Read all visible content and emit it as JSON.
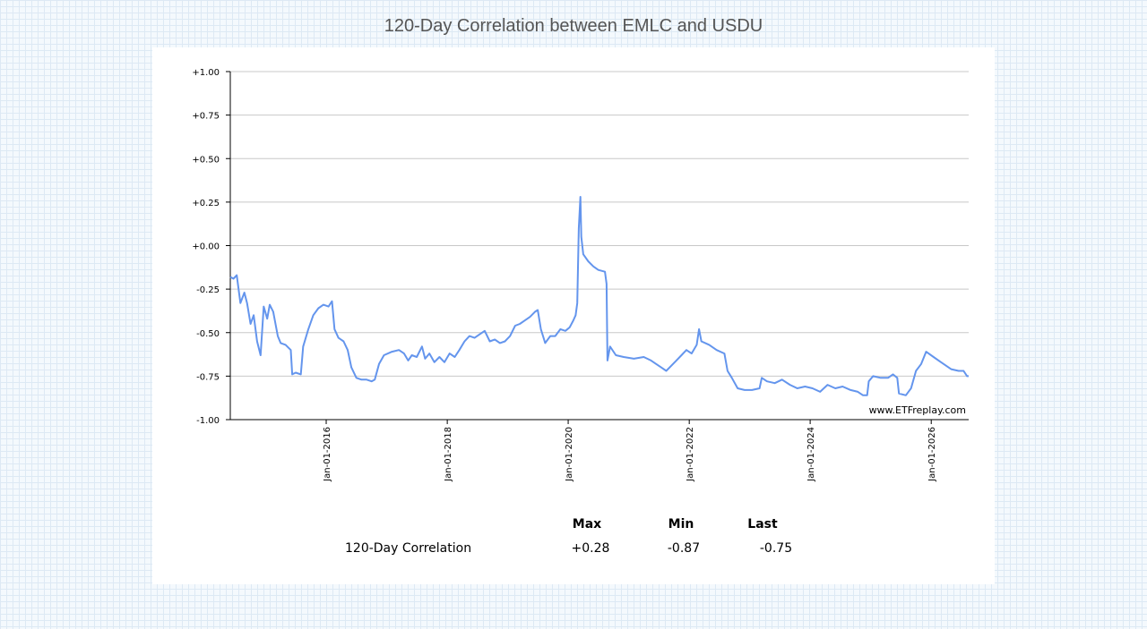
{
  "title": "120-Day Correlation between EMLC and USDU",
  "chart_data": {
    "type": "line",
    "title": "120-Day Correlation between EMLC and USDU",
    "ylim": [
      -1.0,
      1.0
    ],
    "yticks": [
      "+1.00",
      "+0.75",
      "+0.50",
      "+0.25",
      "+0.00",
      "-0.25",
      "-0.50",
      "-0.75",
      "-1.00"
    ],
    "ytick_values": [
      1.0,
      0.75,
      0.5,
      0.25,
      0.0,
      -0.25,
      -0.5,
      -0.75,
      -1.0
    ],
    "xlim": [
      "2014-06-01",
      "2026-08-15"
    ],
    "xticks": [
      "Jan-01-2016",
      "Jan-01-2018",
      "Jan-01-2020",
      "Jan-01-2022",
      "Jan-01-2024",
      "Jan-01-2026"
    ],
    "xtick_dates": [
      "2016-01-01",
      "2018-01-01",
      "2020-01-01",
      "2022-01-01",
      "2024-01-01",
      "2026-01-01"
    ],
    "grid": true,
    "watermark": "www.ETFreplay.com",
    "line_color": "#6495ed",
    "series": [
      {
        "points": [
          [
            "2014-06-01",
            -0.18
          ],
          [
            "2014-06-20",
            -0.19
          ],
          [
            "2014-07-10",
            -0.17
          ],
          [
            "2014-08-01",
            -0.33
          ],
          [
            "2014-08-25",
            -0.27
          ],
          [
            "2014-09-10",
            -0.33
          ],
          [
            "2014-10-01",
            -0.45
          ],
          [
            "2014-10-20",
            -0.4
          ],
          [
            "2014-11-10",
            -0.55
          ],
          [
            "2014-12-01",
            -0.63
          ],
          [
            "2014-12-20",
            -0.35
          ],
          [
            "2015-01-10",
            -0.42
          ],
          [
            "2015-01-25",
            -0.34
          ],
          [
            "2015-02-15",
            -0.38
          ],
          [
            "2015-03-15",
            -0.52
          ],
          [
            "2015-04-01",
            -0.56
          ],
          [
            "2015-05-01",
            -0.57
          ],
          [
            "2015-06-01",
            -0.6
          ],
          [
            "2015-06-10",
            -0.74
          ],
          [
            "2015-07-01",
            -0.73
          ],
          [
            "2015-08-01",
            -0.74
          ],
          [
            "2015-08-15",
            -0.58
          ],
          [
            "2015-09-15",
            -0.48
          ],
          [
            "2015-10-15",
            -0.4
          ],
          [
            "2015-11-15",
            -0.36
          ],
          [
            "2015-12-15",
            -0.34
          ],
          [
            "2016-01-15",
            -0.35
          ],
          [
            "2016-02-05",
            -0.32
          ],
          [
            "2016-02-20",
            -0.48
          ],
          [
            "2016-03-15",
            -0.53
          ],
          [
            "2016-04-15",
            -0.55
          ],
          [
            "2016-05-10",
            -0.6
          ],
          [
            "2016-06-01",
            -0.7
          ],
          [
            "2016-07-01",
            -0.76
          ],
          [
            "2016-08-01",
            -0.77
          ],
          [
            "2016-09-01",
            -0.77
          ],
          [
            "2016-10-01",
            -0.78
          ],
          [
            "2016-10-20",
            -0.77
          ],
          [
            "2016-11-15",
            -0.68
          ],
          [
            "2016-12-15",
            -0.63
          ],
          [
            "2017-02-01",
            -0.61
          ],
          [
            "2017-03-15",
            -0.6
          ],
          [
            "2017-04-15",
            -0.62
          ],
          [
            "2017-05-10",
            -0.66
          ],
          [
            "2017-06-01",
            -0.63
          ],
          [
            "2017-07-01",
            -0.64
          ],
          [
            "2017-08-01",
            -0.58
          ],
          [
            "2017-08-20",
            -0.65
          ],
          [
            "2017-09-15",
            -0.62
          ],
          [
            "2017-10-15",
            -0.67
          ],
          [
            "2017-11-15",
            -0.64
          ],
          [
            "2017-12-15",
            -0.67
          ],
          [
            "2018-01-15",
            -0.62
          ],
          [
            "2018-02-15",
            -0.64
          ],
          [
            "2018-03-15",
            -0.6
          ],
          [
            "2018-04-15",
            -0.55
          ],
          [
            "2018-05-15",
            -0.52
          ],
          [
            "2018-06-15",
            -0.53
          ],
          [
            "2018-07-15",
            -0.51
          ],
          [
            "2018-08-15",
            -0.49
          ],
          [
            "2018-09-15",
            -0.55
          ],
          [
            "2018-10-15",
            -0.54
          ],
          [
            "2018-11-15",
            -0.56
          ],
          [
            "2018-12-15",
            -0.55
          ],
          [
            "2019-01-15",
            -0.52
          ],
          [
            "2019-02-15",
            -0.46
          ],
          [
            "2019-03-15",
            -0.45
          ],
          [
            "2019-04-15",
            -0.43
          ],
          [
            "2019-05-15",
            -0.41
          ],
          [
            "2019-06-15",
            -0.38
          ],
          [
            "2019-07-01",
            -0.37
          ],
          [
            "2019-07-20",
            -0.48
          ],
          [
            "2019-08-15",
            -0.56
          ],
          [
            "2019-09-15",
            -0.52
          ],
          [
            "2019-10-15",
            -0.52
          ],
          [
            "2019-11-15",
            -0.48
          ],
          [
            "2019-12-15",
            -0.49
          ],
          [
            "2020-01-10",
            -0.47
          ],
          [
            "2020-02-01",
            -0.43
          ],
          [
            "2020-02-15",
            -0.4
          ],
          [
            "2020-02-25",
            -0.33
          ],
          [
            "2020-03-05",
            0.1
          ],
          [
            "2020-03-15",
            0.28
          ],
          [
            "2020-03-20",
            0.05
          ],
          [
            "2020-04-01",
            -0.05
          ],
          [
            "2020-05-01",
            -0.09
          ],
          [
            "2020-06-01",
            -0.12
          ],
          [
            "2020-07-01",
            -0.14
          ],
          [
            "2020-08-10",
            -0.15
          ],
          [
            "2020-08-20",
            -0.22
          ],
          [
            "2020-08-25",
            -0.66
          ],
          [
            "2020-09-10",
            -0.58
          ],
          [
            "2020-10-15",
            -0.63
          ],
          [
            "2020-12-01",
            -0.64
          ],
          [
            "2021-02-01",
            -0.65
          ],
          [
            "2021-04-01",
            -0.64
          ],
          [
            "2021-05-15",
            -0.66
          ],
          [
            "2021-06-15",
            -0.68
          ],
          [
            "2021-07-15",
            -0.7
          ],
          [
            "2021-08-15",
            -0.72
          ],
          [
            "2021-09-15",
            -0.69
          ],
          [
            "2021-10-15",
            -0.66
          ],
          [
            "2021-11-15",
            -0.63
          ],
          [
            "2021-12-15",
            -0.6
          ],
          [
            "2022-01-15",
            -0.62
          ],
          [
            "2022-02-15",
            -0.57
          ],
          [
            "2022-03-01",
            -0.48
          ],
          [
            "2022-03-15",
            -0.55
          ],
          [
            "2022-05-01",
            -0.57
          ],
          [
            "2022-06-15",
            -0.6
          ],
          [
            "2022-08-01",
            -0.62
          ],
          [
            "2022-08-20",
            -0.72
          ],
          [
            "2022-09-15",
            -0.76
          ],
          [
            "2022-10-20",
            -0.82
          ],
          [
            "2022-12-01",
            -0.83
          ],
          [
            "2023-01-15",
            -0.83
          ],
          [
            "2023-03-01",
            -0.82
          ],
          [
            "2023-03-15",
            -0.76
          ],
          [
            "2023-04-15",
            -0.78
          ],
          [
            "2023-06-01",
            -0.79
          ],
          [
            "2023-07-15",
            -0.77
          ],
          [
            "2023-09-01",
            -0.8
          ],
          [
            "2023-10-15",
            -0.82
          ],
          [
            "2023-12-01",
            -0.81
          ],
          [
            "2024-01-15",
            -0.82
          ],
          [
            "2024-03-01",
            -0.84
          ],
          [
            "2024-04-15",
            -0.8
          ],
          [
            "2024-06-01",
            -0.82
          ],
          [
            "2024-07-15",
            -0.81
          ],
          [
            "2024-09-01",
            -0.83
          ],
          [
            "2024-10-15",
            -0.84
          ],
          [
            "2024-11-15",
            -0.86
          ],
          [
            "2024-12-10",
            -0.86
          ],
          [
            "2024-12-20",
            -0.78
          ],
          [
            "2025-01-15",
            -0.75
          ],
          [
            "2025-03-01",
            -0.76
          ],
          [
            "2025-04-15",
            -0.76
          ],
          [
            "2025-05-15",
            -0.74
          ],
          [
            "2025-06-10",
            -0.76
          ],
          [
            "2025-06-20",
            -0.85
          ],
          [
            "2025-08-01",
            -0.86
          ],
          [
            "2025-09-01",
            -0.82
          ],
          [
            "2025-10-01",
            -0.72
          ],
          [
            "2025-11-01",
            -0.68
          ],
          [
            "2025-12-01",
            -0.61
          ],
          [
            "2026-01-15",
            -0.64
          ],
          [
            "2026-03-01",
            -0.67
          ],
          [
            "2026-05-01",
            -0.71
          ],
          [
            "2026-06-15",
            -0.72
          ],
          [
            "2026-07-15",
            -0.72
          ],
          [
            "2026-08-05",
            -0.75
          ],
          [
            "2026-08-15",
            -0.75
          ]
        ]
      }
    ]
  },
  "stats": {
    "headers": {
      "max": "Max",
      "min": "Min",
      "last": "Last"
    },
    "row_label": "120-Day Correlation",
    "values": {
      "max": "+0.28",
      "min": "-0.87",
      "last": "-0.75"
    }
  }
}
